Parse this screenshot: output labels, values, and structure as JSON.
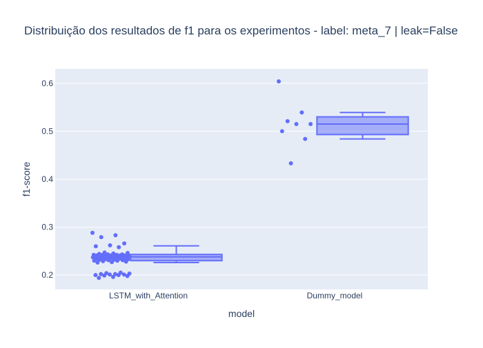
{
  "colors": {
    "plot_bg": "#e5ecf6",
    "grid": "#ffffff",
    "series": "#636efa",
    "box_fill": "rgba(99,110,250,0.5)",
    "text": "#2a3f5f"
  },
  "chart_data": {
    "type": "box",
    "title": "Distribuição dos resultados de f1 para os experimentos - label: meta_7 | leak=False",
    "xlabel": "model",
    "ylabel": "f1-score",
    "ylim": [
      0.17,
      0.63
    ],
    "yticks": [
      0.2,
      0.3,
      0.4,
      0.5,
      0.6
    ],
    "ytick_labels": [
      "0.2",
      "0.3",
      "0.4",
      "0.5",
      "0.6"
    ],
    "grid": true,
    "categories": [
      "LSTM_with_Attention",
      "Dummy_model"
    ],
    "boxes": [
      {
        "category": "LSTM_with_Attention",
        "q1": 0.23,
        "median": 0.238,
        "q3": 0.243,
        "whisker_low": 0.226,
        "whisker_high": 0.261,
        "points": [
          0.288,
          0.283,
          0.279,
          0.266,
          0.262,
          0.26,
          0.258,
          0.247,
          0.246,
          0.245,
          0.244,
          0.243,
          0.243,
          0.242,
          0.242,
          0.242,
          0.241,
          0.241,
          0.241,
          0.241,
          0.24,
          0.24,
          0.24,
          0.24,
          0.24,
          0.24,
          0.239,
          0.239,
          0.239,
          0.239,
          0.238,
          0.238,
          0.238,
          0.237,
          0.237,
          0.236,
          0.236,
          0.235,
          0.235,
          0.234,
          0.234,
          0.233,
          0.233,
          0.232,
          0.232,
          0.231,
          0.231,
          0.23,
          0.23,
          0.229,
          0.228,
          0.227,
          0.226,
          0.205,
          0.204,
          0.203,
          0.202,
          0.202,
          0.201,
          0.201,
          0.2,
          0.2,
          0.199,
          0.198,
          0.196,
          0.194
        ]
      },
      {
        "category": "Dummy_model",
        "q1": 0.493,
        "median": 0.515,
        "q3": 0.53,
        "whisker_low": 0.484,
        "whisker_high": 0.539,
        "points": [
          0.604,
          0.539,
          0.521,
          0.515,
          0.515,
          0.5,
          0.484,
          0.433
        ]
      }
    ]
  }
}
